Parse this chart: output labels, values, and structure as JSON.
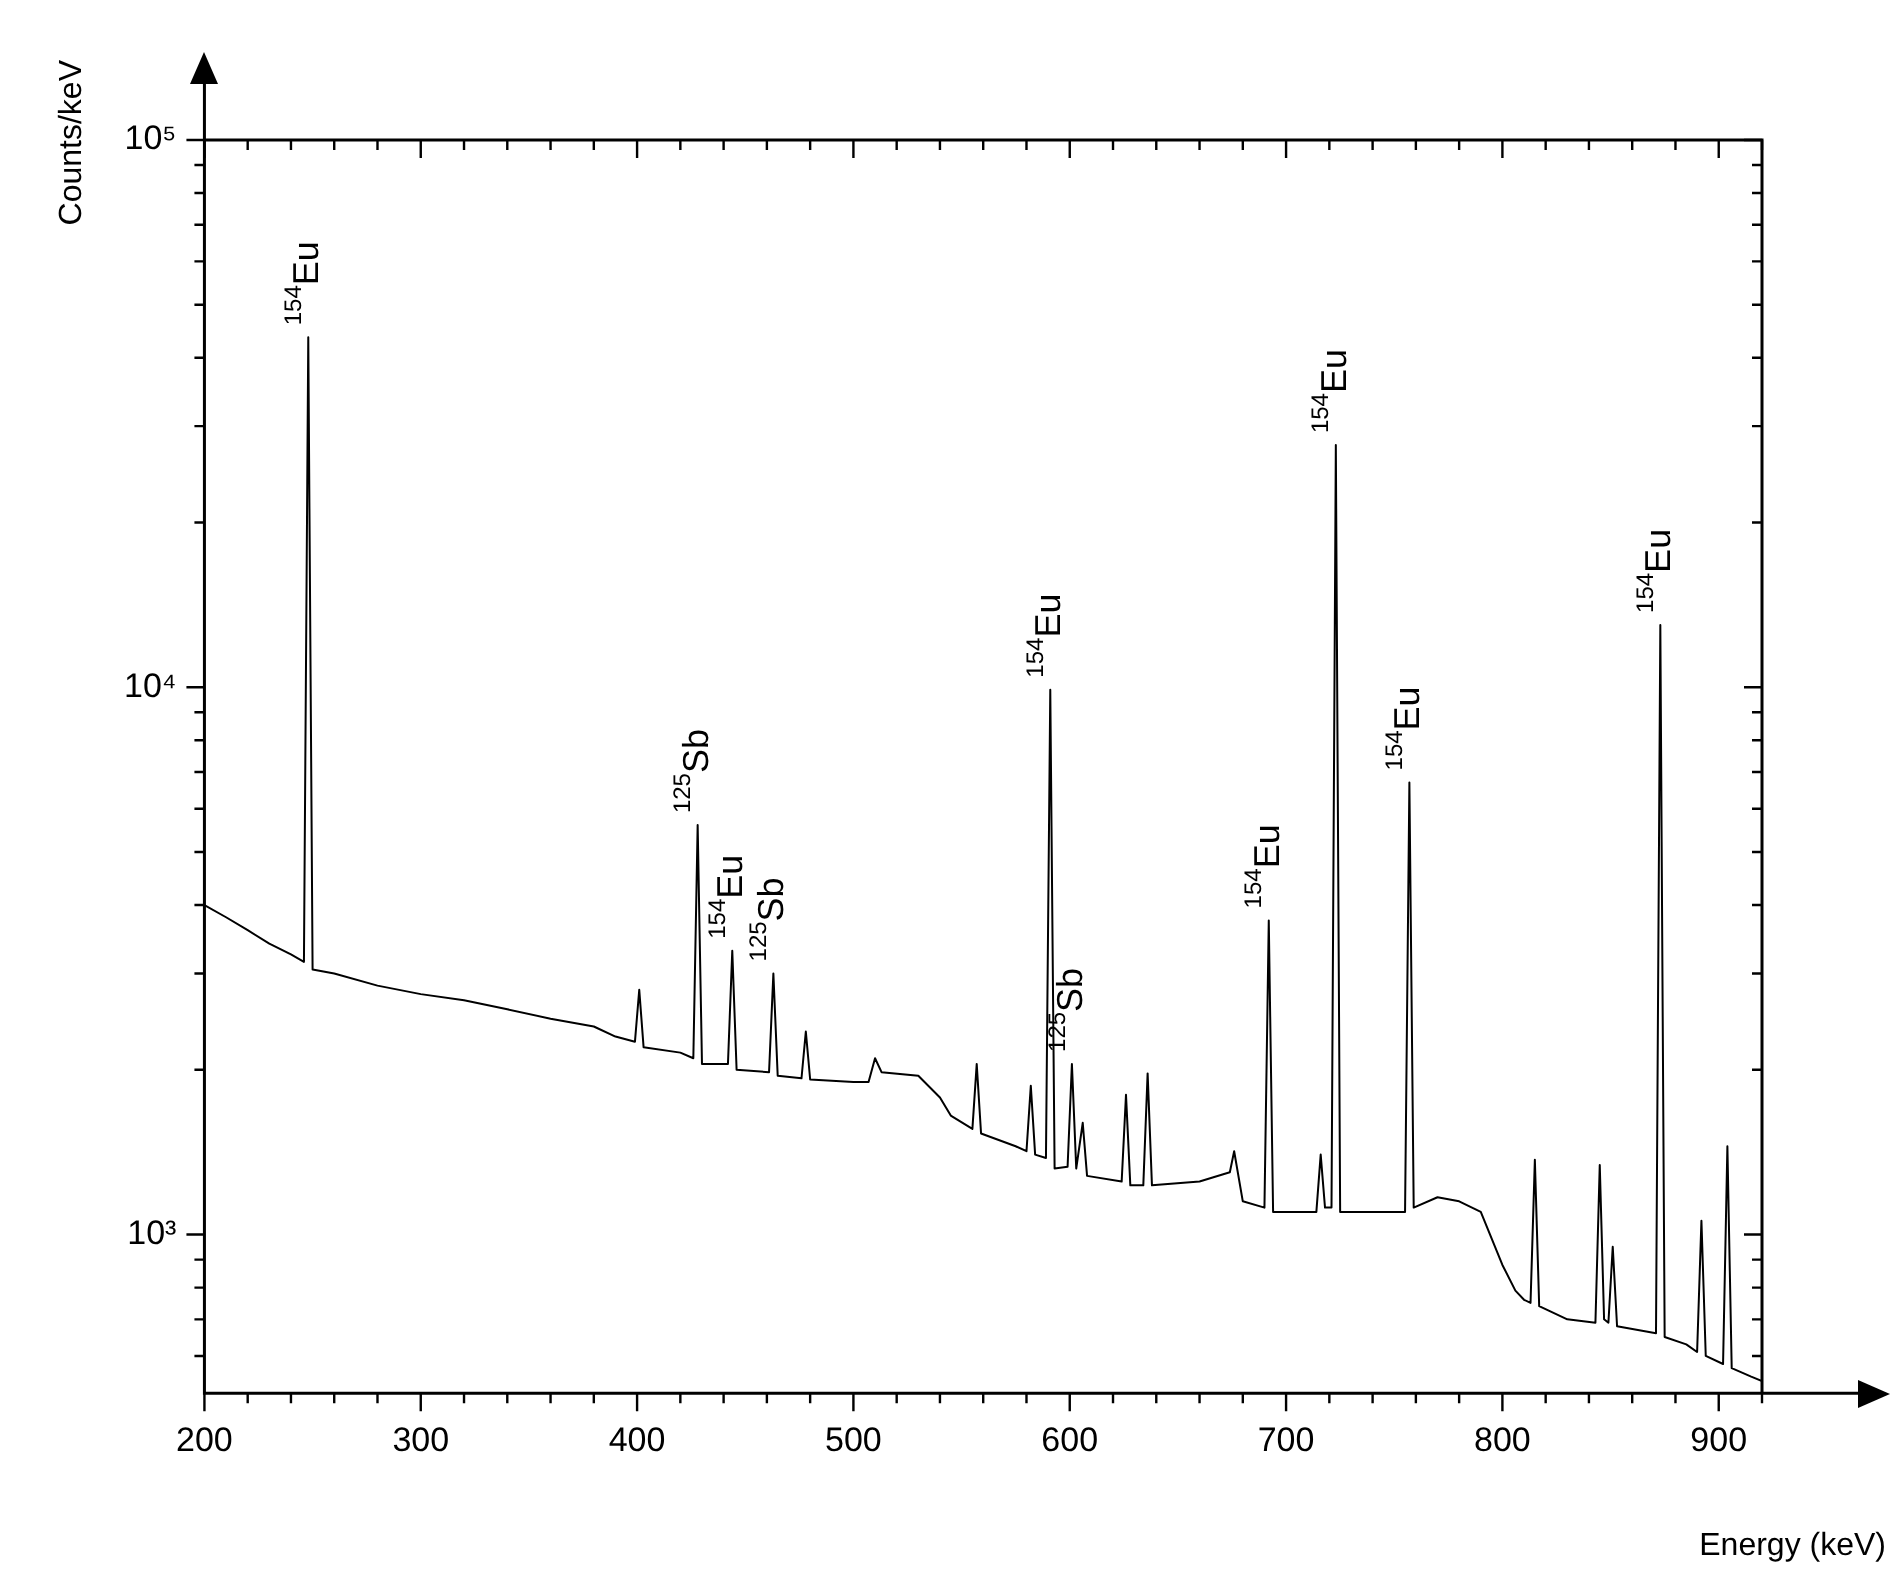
{
  "chart_data": {
    "type": "line",
    "xlabel": "Energy (keV)",
    "ylabel": "Counts/keV",
    "log": "y",
    "grid": false,
    "legend": false,
    "marker": "none",
    "line_style": "solid",
    "xlim": [
      200,
      920
    ],
    "ylim": [
      513,
      100000
    ],
    "xticks": [
      200,
      {
        "value": 220,
        "label": null
      },
      {
        "value": 240,
        "label": null
      },
      {
        "value": 260,
        "label": null
      },
      {
        "value": 280,
        "label": null
      },
      300,
      {
        "value": 320,
        "label": null
      },
      {
        "value": 340,
        "label": null
      },
      {
        "value": 360,
        "label": null
      },
      {
        "value": 380,
        "label": null
      },
      400,
      {
        "value": 420,
        "label": null
      },
      {
        "value": 440,
        "label": null
      },
      {
        "value": 460,
        "label": null
      },
      {
        "value": 480,
        "label": null
      },
      500,
      {
        "value": 520,
        "label": null
      },
      {
        "value": 540,
        "label": null
      },
      {
        "value": 560,
        "label": null
      },
      {
        "value": 580,
        "label": null
      },
      600,
      {
        "value": 620,
        "label": null
      },
      {
        "value": 640,
        "label": null
      },
      {
        "value": 660,
        "label": null
      },
      {
        "value": 680,
        "label": null
      },
      700,
      {
        "value": 720,
        "label": null
      },
      {
        "value": 740,
        "label": null
      },
      {
        "value": 760,
        "label": null
      },
      {
        "value": 780,
        "label": null
      },
      800,
      {
        "value": 820,
        "label": null
      },
      {
        "value": 840,
        "label": null
      },
      {
        "value": 860,
        "label": null
      },
      {
        "value": 880,
        "label": null
      },
      900,
      {
        "value": 920,
        "label": null
      }
    ],
    "yticks": [
      {
        "value": 600,
        "label": null
      },
      {
        "value": 700,
        "label": null
      },
      {
        "value": 800,
        "label": null
      },
      {
        "value": 900,
        "label": null
      },
      {
        "value": 1000,
        "label": "10³"
      },
      {
        "value": 2000,
        "label": null
      },
      {
        "value": 3000,
        "label": null
      },
      {
        "value": 4000,
        "label": null
      },
      {
        "value": 5000,
        "label": null
      },
      {
        "value": 6000,
        "label": null
      },
      {
        "value": 7000,
        "label": null
      },
      {
        "value": 8000,
        "label": null
      },
      {
        "value": 9000,
        "label": null
      },
      {
        "value": 10000,
        "label": "10⁴"
      },
      {
        "value": 20000,
        "label": null
      },
      {
        "value": 30000,
        "label": null
      },
      {
        "value": 40000,
        "label": null
      },
      {
        "value": 50000,
        "label": null
      },
      {
        "value": 60000,
        "label": null
      },
      {
        "value": 70000,
        "label": null
      },
      {
        "value": 80000,
        "label": null
      },
      {
        "value": 90000,
        "label": null
      },
      {
        "value": 100000,
        "label": "10⁵"
      }
    ],
    "series": [
      {
        "color": "#000000",
        "x": [
          200,
          210,
          220,
          230,
          240,
          246,
          248,
          250,
          260,
          280,
          300,
          320,
          340,
          360,
          380,
          390,
          399,
          401,
          403,
          420,
          426,
          428,
          430,
          442,
          444,
          446,
          461,
          463,
          465,
          476,
          478,
          480,
          500,
          507,
          510,
          513,
          530,
          540,
          545,
          555,
          557,
          559,
          575,
          580,
          582,
          584,
          589,
          591,
          593,
          599,
          601,
          603,
          606,
          608,
          624,
          626,
          628,
          634,
          636,
          638,
          660,
          674,
          676,
          680,
          690,
          692,
          694,
          714,
          716,
          718,
          721,
          723,
          725,
          740,
          755,
          757,
          759,
          770,
          780,
          790,
          800,
          806,
          810,
          813,
          815,
          817,
          830,
          843,
          845,
          847,
          849,
          851,
          853,
          871,
          873,
          875,
          885,
          890,
          892,
          894,
          902,
          904,
          906,
          915,
          920
        ],
        "values": [
          4000,
          3800,
          3600,
          3400,
          3250,
          3150,
          43600,
          3050,
          3000,
          2850,
          2750,
          2680,
          2580,
          2480,
          2400,
          2300,
          2250,
          2800,
          2200,
          2150,
          2100,
          5600,
          2050,
          2050,
          3300,
          2000,
          1980,
          3000,
          1950,
          1930,
          2350,
          1920,
          1900,
          1900,
          2100,
          1980,
          1950,
          1780,
          1650,
          1560,
          2050,
          1530,
          1450,
          1420,
          1870,
          1400,
          1380,
          9900,
          1320,
          1330,
          2050,
          1320,
          1600,
          1280,
          1250,
          1800,
          1230,
          1230,
          1970,
          1230,
          1250,
          1300,
          1420,
          1150,
          1120,
          3750,
          1100,
          1100,
          1400,
          1120,
          1120,
          27700,
          1100,
          1100,
          1100,
          6700,
          1120,
          1170,
          1150,
          1100,
          880,
          790,
          760,
          750,
          1370,
          740,
          700,
          690,
          1340,
          700,
          690,
          950,
          680,
          660,
          13000,
          650,
          630,
          610,
          1060,
          600,
          580,
          1450,
          570,
          550,
          540
        ]
      }
    ],
    "annotations": [
      {
        "text": "$^{154}$Eu",
        "x": 248,
        "y": 43600
      },
      {
        "text": "$^{125}$Sb",
        "x": 428,
        "y": 5600
      },
      {
        "text": "$^{154}$Eu",
        "x": 444,
        "y": 3300
      },
      {
        "text": "$^{125}$Sb",
        "x": 463,
        "y": 3000
      },
      {
        "text": "$^{154}$Eu",
        "x": 591,
        "y": 9900
      },
      {
        "text": "$^{125}$Sb",
        "x": 601,
        "y": 2050
      },
      {
        "text": "$^{154}$Eu",
        "x": 692,
        "y": 3750
      },
      {
        "text": "$^{154}$Eu",
        "x": 723,
        "y": 27700
      },
      {
        "text": "$^{154}$Eu",
        "x": 757,
        "y": 6700
      },
      {
        "text": "$^{154}$Eu",
        "x": 873,
        "y": 13000
      }
    ]
  }
}
